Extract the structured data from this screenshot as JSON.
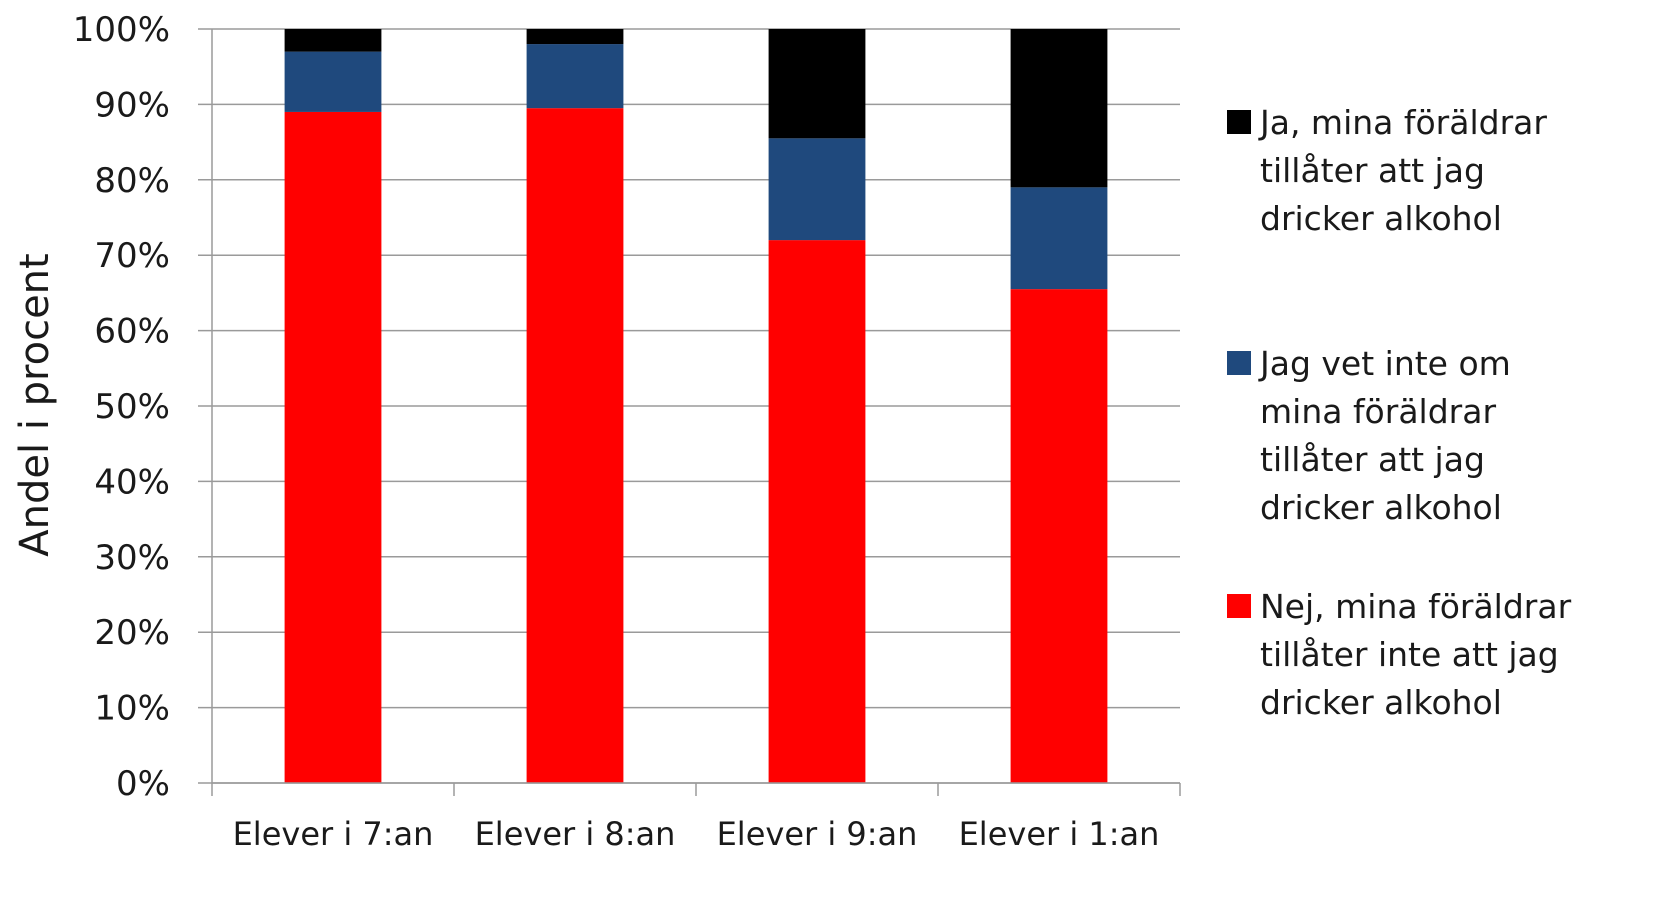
{
  "chart_data": {
    "type": "bar",
    "stacked": true,
    "categories": [
      "Elever i 7:an",
      "Elever i 8:an",
      "Elever i 9:an",
      "Elever i 1:an"
    ],
    "series": [
      {
        "name": "Nej, mina föräldrar tillåter inte att jag dricker alkohol",
        "legend_lines": [
          "Nej, mina föräldrar",
          "tillåter inte att jag",
          "dricker alkohol"
        ],
        "color": "#ff0000",
        "values": [
          89,
          89.5,
          72,
          65.5
        ]
      },
      {
        "name": "Jag vet inte om mina föräldrar tillåter att jag dricker alkohol",
        "legend_lines": [
          "Jag vet inte om",
          "mina föräldrar",
          "tillåter att jag",
          "dricker alkohol"
        ],
        "color": "#1f497d",
        "values": [
          8,
          8.5,
          13.5,
          13.5
        ]
      },
      {
        "name": "Ja, mina föräldrar tillåter att jag dricker alkohol",
        "legend_lines": [
          "Ja, mina föräldrar",
          "tillåter att jag",
          "dricker alkohol"
        ],
        "color": "#000000",
        "values": [
          3,
          2,
          14.5,
          21
        ]
      }
    ],
    "ylabel": "Andel i procent",
    "ylim": [
      0,
      100
    ],
    "yticks": [
      "0%",
      "10%",
      "20%",
      "30%",
      "40%",
      "50%",
      "60%",
      "70%",
      "80%",
      "90%",
      "100%"
    ],
    "grid": true,
    "legend_position": "right"
  }
}
